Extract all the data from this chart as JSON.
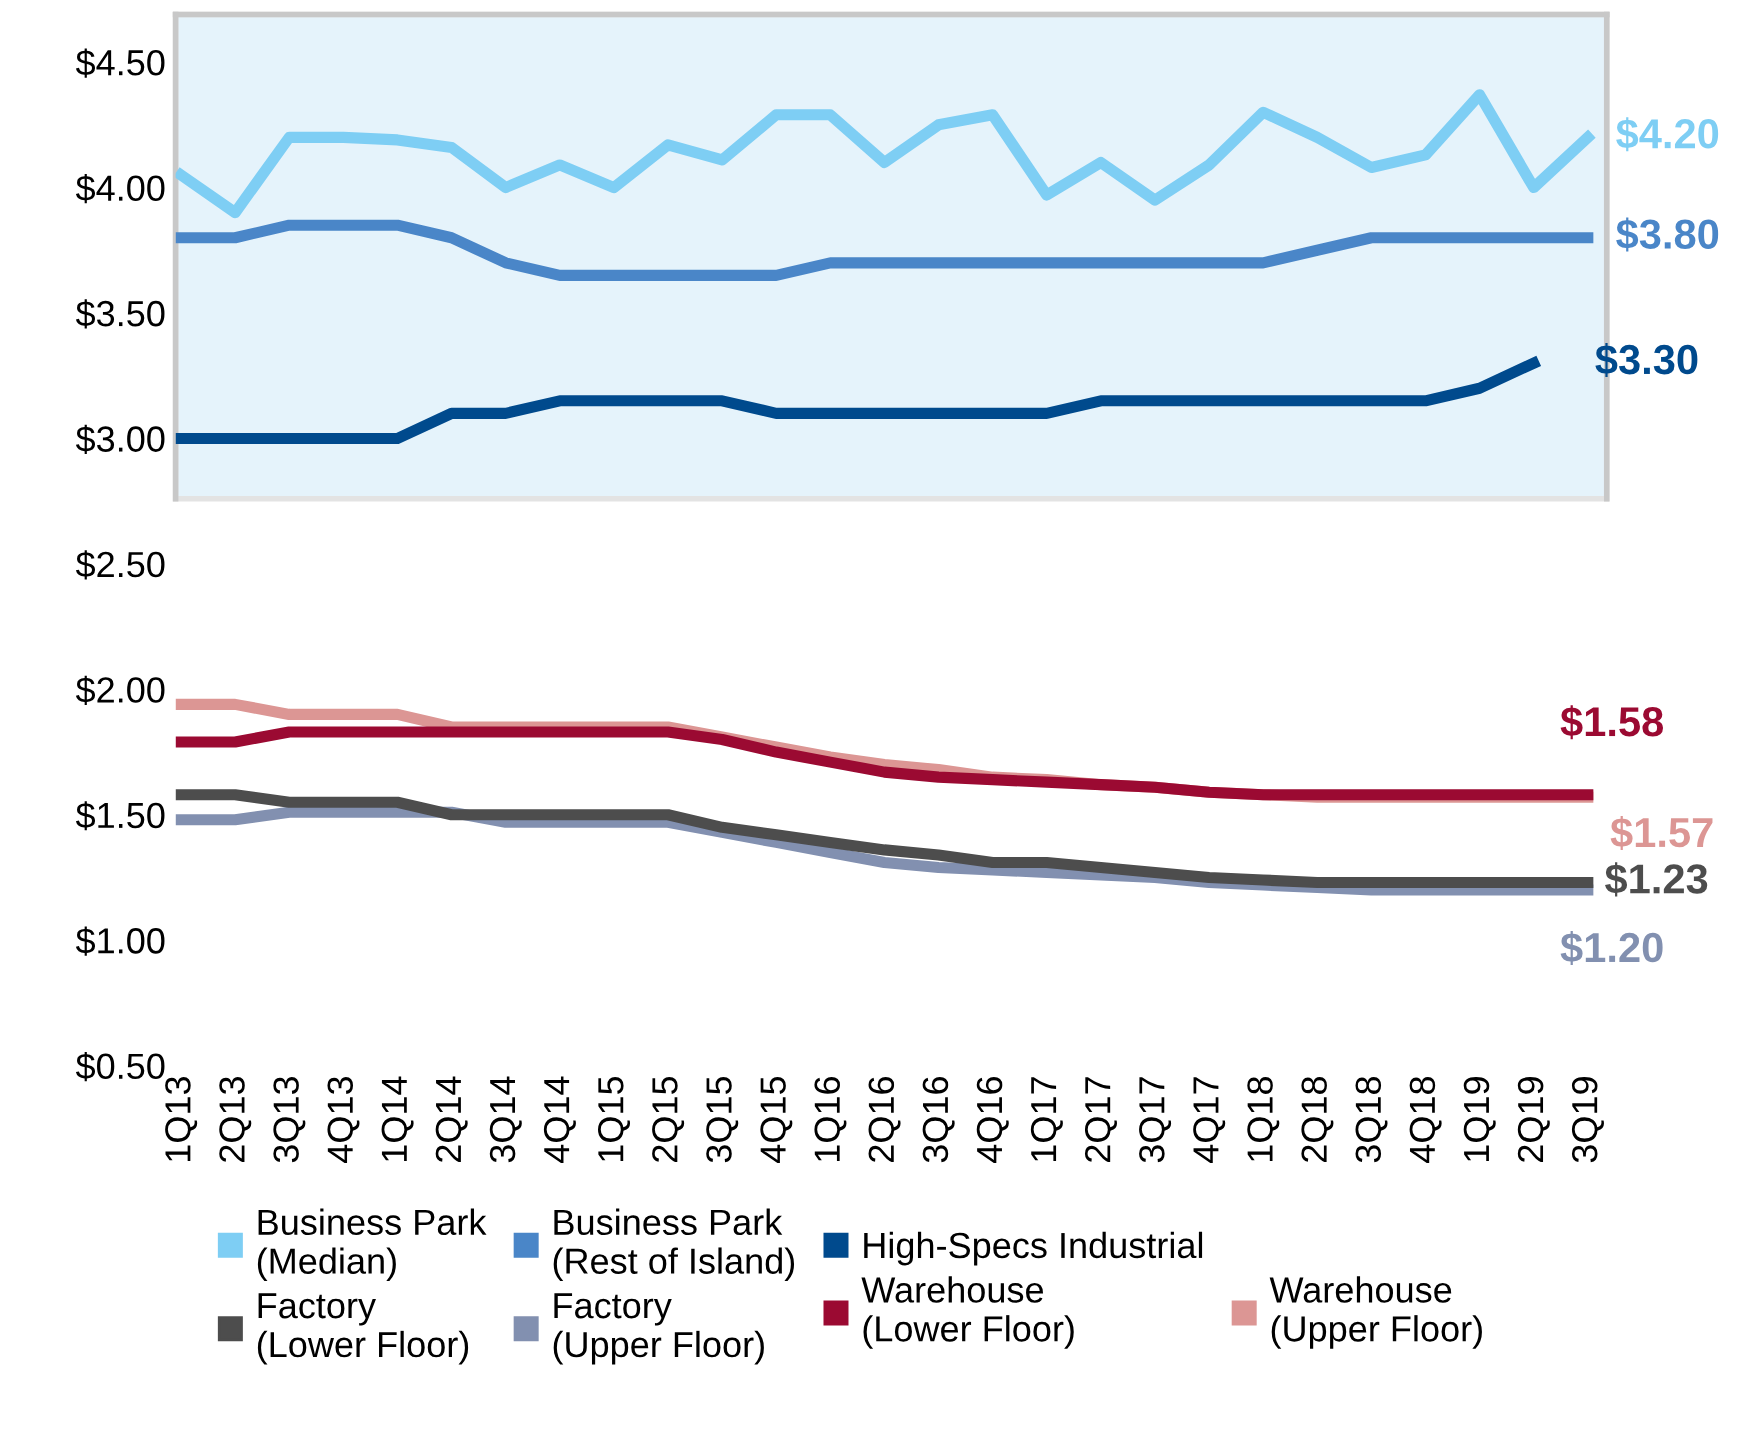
{
  "chart_data": {
    "type": "line",
    "categories": [
      "1Q13",
      "2Q13",
      "3Q13",
      "4Q13",
      "1Q14",
      "2Q14",
      "3Q14",
      "4Q14",
      "1Q15",
      "2Q15",
      "3Q15",
      "4Q15",
      "1Q16",
      "2Q16",
      "3Q16",
      "4Q16",
      "1Q17",
      "2Q17",
      "3Q17",
      "4Q17",
      "1Q18",
      "2Q18",
      "3Q18",
      "4Q18",
      "1Q19",
      "2Q19",
      "3Q19"
    ],
    "series": [
      {
        "name": "Business Park\n(Median)",
        "color": "#7ecef4",
        "values": [
          4.05,
          3.9,
          4.2,
          4.2,
          4.19,
          4.16,
          4.0,
          4.09,
          4.0,
          4.17,
          4.11,
          4.29,
          4.29,
          4.1,
          4.25,
          4.29,
          3.97,
          4.1,
          3.95,
          4.09,
          4.3,
          4.2,
          4.08,
          4.13,
          4.37,
          4.0,
          4.2
        ],
        "value_labels": [
          null,
          null,
          null,
          null,
          null,
          null,
          null,
          null,
          null,
          null,
          null,
          null,
          null,
          null,
          null,
          null,
          null,
          null,
          null,
          null,
          null,
          null,
          null,
          null,
          null,
          null,
          "$4.20"
        ]
      },
      {
        "name": "Business Park\n(Rest of Island)",
        "color": "#4a86c8",
        "values": [
          3.8,
          3.8,
          3.85,
          3.85,
          3.85,
          3.8,
          3.7,
          3.65,
          3.65,
          3.65,
          3.65,
          3.65,
          3.7,
          3.7,
          3.7,
          3.7,
          3.7,
          3.7,
          3.7,
          3.7,
          3.7,
          3.75,
          3.8,
          3.8,
          3.8,
          3.8,
          3.8
        ],
        "value_labels": [
          null,
          null,
          null,
          null,
          null,
          null,
          null,
          null,
          null,
          null,
          null,
          null,
          null,
          null,
          null,
          null,
          null,
          null,
          null,
          null,
          null,
          null,
          null,
          null,
          null,
          null,
          "$3.80"
        ]
      },
      {
        "name": "High-Specs Industrial",
        "color": "#004a8d",
        "values": [
          3.0,
          3.0,
          3.0,
          3.0,
          3.0,
          3.1,
          3.1,
          3.15,
          3.15,
          3.15,
          3.15,
          3.1,
          3.1,
          3.1,
          3.1,
          3.1,
          3.1,
          3.15,
          3.15,
          3.15,
          3.15,
          3.15,
          3.15,
          3.15,
          3.2,
          3.3,
          null
        ],
        "value_labels": [
          null,
          null,
          null,
          null,
          null,
          null,
          null,
          null,
          null,
          null,
          null,
          null,
          null,
          null,
          null,
          null,
          null,
          null,
          null,
          null,
          null,
          null,
          null,
          null,
          null,
          "$3.30",
          null
        ]
      },
      {
        "name": "Factory\n(Lower Floor)",
        "color": "#4d4d4d",
        "values": [
          1.58,
          1.58,
          1.55,
          1.55,
          1.55,
          1.5,
          1.5,
          1.5,
          1.5,
          1.5,
          1.45,
          1.42,
          1.39,
          1.36,
          1.34,
          1.31,
          1.31,
          1.29,
          1.27,
          1.25,
          1.24,
          1.23,
          1.23,
          1.23,
          1.23,
          1.23,
          1.23
        ],
        "value_labels": [
          null,
          null,
          null,
          null,
          null,
          null,
          null,
          null,
          null,
          null,
          null,
          null,
          null,
          null,
          null,
          null,
          null,
          null,
          null,
          null,
          null,
          null,
          null,
          null,
          null,
          null,
          "$1.23"
        ]
      },
      {
        "name": "Factory\n(Upper Floor)",
        "color": "#8290b0",
        "values": [
          1.48,
          1.48,
          1.51,
          1.51,
          1.51,
          1.51,
          1.47,
          1.47,
          1.47,
          1.47,
          1.43,
          1.39,
          1.35,
          1.31,
          1.29,
          1.28,
          1.27,
          1.26,
          1.25,
          1.23,
          1.22,
          1.21,
          1.2,
          1.2,
          1.2,
          1.2,
          1.2
        ],
        "value_labels": [
          null,
          null,
          null,
          null,
          null,
          null,
          null,
          null,
          null,
          null,
          null,
          null,
          null,
          null,
          null,
          null,
          null,
          null,
          null,
          null,
          null,
          null,
          null,
          null,
          null,
          null,
          "$1.20"
        ]
      },
      {
        "name": "Warehouse\n(Lower Floor)",
        "color": "#9b0a32",
        "values": [
          1.79,
          1.79,
          1.83,
          1.83,
          1.83,
          1.83,
          1.83,
          1.83,
          1.83,
          1.83,
          1.8,
          1.75,
          1.71,
          1.67,
          1.65,
          1.64,
          1.63,
          1.62,
          1.61,
          1.59,
          1.58,
          1.58,
          1.58,
          1.58,
          1.58,
          1.58,
          1.58
        ],
        "value_labels": [
          null,
          null,
          null,
          null,
          null,
          null,
          null,
          null,
          null,
          null,
          null,
          null,
          null,
          null,
          null,
          null,
          null,
          null,
          null,
          null,
          null,
          null,
          null,
          null,
          null,
          null,
          "$1.58"
        ]
      },
      {
        "name": "Warehouse\n(Upper Floor)",
        "color": "#dc9694",
        "values": [
          1.94,
          1.94,
          1.9,
          1.9,
          1.9,
          1.85,
          1.85,
          1.85,
          1.85,
          1.85,
          1.81,
          1.77,
          1.73,
          1.7,
          1.68,
          1.65,
          1.64,
          1.62,
          1.61,
          1.59,
          1.58,
          1.57,
          1.57,
          1.57,
          1.57,
          1.57,
          1.57
        ],
        "value_labels": [
          null,
          null,
          null,
          null,
          null,
          null,
          null,
          null,
          null,
          null,
          null,
          null,
          null,
          null,
          null,
          null,
          null,
          null,
          null,
          null,
          null,
          null,
          null,
          null,
          null,
          null,
          "$1.57"
        ]
      }
    ],
    "ylim": [
      0.5,
      4.69
    ],
    "yticks": [
      {
        "value": 0.5,
        "label": "$0.50"
      },
      {
        "value": 1.0,
        "label": "$1.00"
      },
      {
        "value": 1.5,
        "label": "$1.50"
      },
      {
        "value": 2.0,
        "label": "$2.00"
      },
      {
        "value": 2.5,
        "label": "$2.50"
      },
      {
        "value": 3.0,
        "label": "$3.00"
      },
      {
        "value": 3.5,
        "label": "$3.50"
      },
      {
        "value": 4.0,
        "label": "$4.00"
      },
      {
        "value": 4.5,
        "label": "$4.50"
      }
    ],
    "bands": [
      {
        "axis": "y",
        "from": 2.76,
        "to": 4.69,
        "color": "#e5f3fb"
      }
    ],
    "legend": "bottom",
    "grid": false,
    "marker": "none",
    "line_style": "solid"
  }
}
